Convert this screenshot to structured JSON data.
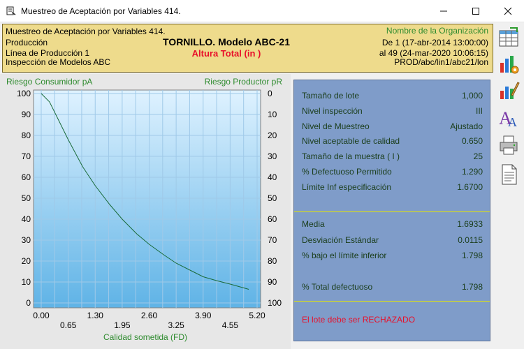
{
  "window": {
    "title": "Muestreo de Aceptación por Variables 414."
  },
  "header": {
    "line1": "Muestreo de Aceptación por Variables 414.",
    "line2": "Producción",
    "line3": "Línea de Producción 1",
    "line4": "Inspección de Modelos ABC",
    "product": "TORNILLO. Modelo ABC-21",
    "characteristic": "Altura Total (in    )",
    "org": "Nombre de la Organización",
    "date_from": "De 1 (17-abr-2014  13:00:00)",
    "date_to": "al 49 (24-mar-2020  10:06:15)",
    "path": "PROD/abc/lin1/abc21/lon"
  },
  "chart_data": {
    "type": "line",
    "left_axis_label": "Riesgo Consumidor pA",
    "right_axis_label": "Riesgo Productor pR",
    "xlabel": "Calidad sometida (FD)",
    "xlim": [
      0,
      5.2
    ],
    "ylim": [
      0,
      100
    ],
    "x_ticks_upper": [
      "0.00",
      "1.30",
      "2.60",
      "3.90",
      "5.20"
    ],
    "x_ticks_lower": [
      "0.65",
      "1.95",
      "3.25",
      "4.55"
    ],
    "y_ticks_left": [
      "100",
      "90",
      "80",
      "70",
      "60",
      "50",
      "40",
      "30",
      "20",
      "10",
      "0"
    ],
    "y_ticks_right": [
      "0",
      "10",
      "20",
      "30",
      "40",
      "50",
      "60",
      "70",
      "80",
      "90",
      "100"
    ],
    "grid": true,
    "series": [
      {
        "color": "#1a6b3a",
        "x": [
          0.0,
          0.2,
          0.4,
          0.65,
          1.0,
          1.3,
          1.65,
          1.95,
          2.3,
          2.6,
          2.95,
          3.25,
          3.6,
          3.9,
          4.25,
          4.55,
          5.0
        ],
        "y": [
          100,
          96,
          88,
          78,
          65,
          56,
          47,
          40,
          33,
          28,
          23,
          19,
          15.5,
          12.5,
          10.5,
          9,
          6.5
        ]
      }
    ]
  },
  "stats": {
    "rows_top": [
      {
        "label": "Tamaño de lote",
        "value": "1,000"
      },
      {
        "label": "Nivel inspección",
        "value": "III"
      },
      {
        "label": "Nivel de Muestreo",
        "value": "Ajustado"
      },
      {
        "label": "Nivel aceptable de calidad",
        "value": "0.650"
      },
      {
        "label": "Tamaño de la muestra ( I )",
        "value": "25"
      },
      {
        "label": "% Defectuoso Permitido",
        "value": "1.290"
      },
      {
        "label": "Límite Inf especificación",
        "value": "1.6700"
      }
    ],
    "rows_mid": [
      {
        "label": "Media",
        "value": "1.6933"
      },
      {
        "label": "Desviación Estándar",
        "value": "0.0115"
      },
      {
        "label": "% bajo el límite inferior",
        "value": "1.798"
      }
    ],
    "rows_bottom": [
      {
        "label": "% Total defectuoso",
        "value": "1.798"
      }
    ],
    "verdict": "El lote debe ser  RECHAZADO"
  },
  "colors": {
    "header_bg": "#eedb8c",
    "plot_bg_top": "#dff2ff",
    "plot_bg_bottom": "#5fb3e6",
    "stats_bg": "#7f9cc9",
    "label_green": "#2e8b2e",
    "verdict_red": "#e8102a",
    "title_red": "#e8102a"
  },
  "toolbar": {
    "icons": [
      "spreadsheet-icon",
      "chart-settings-icon",
      "edit-chart-icon",
      "font-icon",
      "printer-icon",
      "document-icon"
    ]
  }
}
